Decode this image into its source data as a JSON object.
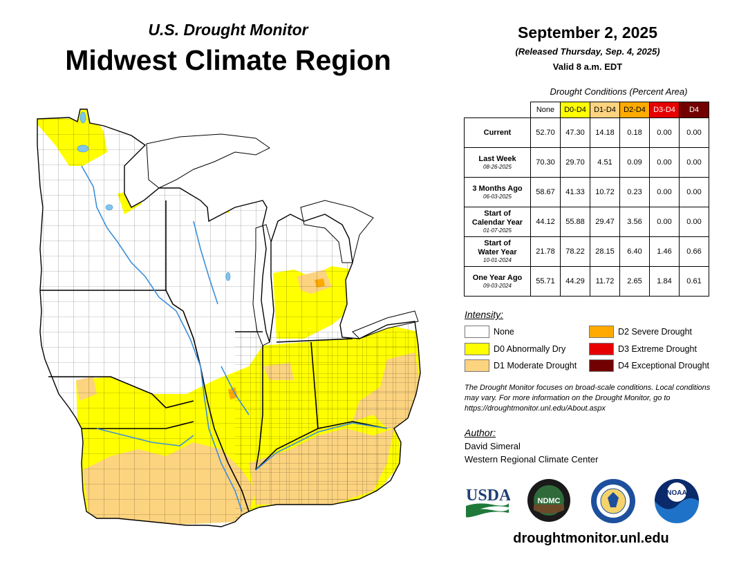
{
  "header": {
    "subtitle": "U.S. Drought Monitor",
    "title": "Midwest Climate Region",
    "date": "September 2, 2025",
    "released": "(Released Thursday, Sep. 4, 2025)",
    "valid": "Valid 8 a.m. EDT"
  },
  "table": {
    "caption": "Drought Conditions (Percent Area)",
    "columns": [
      {
        "label": "None",
        "color": "#ffffff",
        "text_color": "#000000"
      },
      {
        "label": "D0-D4",
        "color": "#ffff00",
        "text_color": "#000000"
      },
      {
        "label": "D1-D4",
        "color": "#fcd37f",
        "text_color": "#000000"
      },
      {
        "label": "D2-D4",
        "color": "#ffaa00",
        "text_color": "#000000"
      },
      {
        "label": "D3-D4",
        "color": "#e60000",
        "text_color": "#ffffff"
      },
      {
        "label": "D4",
        "color": "#730000",
        "text_color": "#ffffff"
      }
    ],
    "rows": [
      {
        "label": "Current",
        "date": "",
        "values": [
          "52.70",
          "47.30",
          "14.18",
          "0.18",
          "0.00",
          "0.00"
        ]
      },
      {
        "label": "Last Week",
        "date": "08-26-2025",
        "values": [
          "70.30",
          "29.70",
          "4.51",
          "0.09",
          "0.00",
          "0.00"
        ]
      },
      {
        "label": "3 Months Ago",
        "date": "06-03-2025",
        "values": [
          "58.67",
          "41.33",
          "10.72",
          "0.23",
          "0.00",
          "0.00"
        ]
      },
      {
        "label": "Start of\nCalendar Year",
        "date": "01-07-2025",
        "values": [
          "44.12",
          "55.88",
          "29.47",
          "3.56",
          "0.00",
          "0.00"
        ]
      },
      {
        "label": "Start of\nWater Year",
        "date": "10-01-2024",
        "values": [
          "21.78",
          "78.22",
          "28.15",
          "6.40",
          "1.46",
          "0.66"
        ]
      },
      {
        "label": "One Year Ago",
        "date": "09-03-2024",
        "values": [
          "55.71",
          "44.29",
          "11.72",
          "2.65",
          "1.84",
          "0.61"
        ]
      }
    ]
  },
  "legend": {
    "title": "Intensity:",
    "items": [
      {
        "label": "None",
        "color": "#ffffff"
      },
      {
        "label": "D0 Abnormally Dry",
        "color": "#ffff00"
      },
      {
        "label": "D1 Moderate Drought",
        "color": "#fcd37f"
      },
      {
        "label": "D2 Severe Drought",
        "color": "#ffaa00"
      },
      {
        "label": "D3 Extreme Drought",
        "color": "#e60000"
      },
      {
        "label": "D4 Exceptional Drought",
        "color": "#730000"
      }
    ]
  },
  "note": "The Drought Monitor focuses on broad-scale conditions. Local conditions may vary. For more information on the Drought Monitor, go to https://droughtmonitor.unl.edu/About.aspx",
  "author": {
    "label": "Author:",
    "name": "David Simeral",
    "org": "Western Regional Climate Center"
  },
  "logos": {
    "usda": "USDA",
    "ndmc": "NDMC",
    "noaa": "NOAA"
  },
  "website": "droughtmonitor.unl.edu",
  "colors": {
    "none": "#ffffff",
    "d0": "#ffff00",
    "d1": "#fcd37f",
    "d2": "#ffaa00",
    "water": "#7fc6ea",
    "border": "#000000"
  }
}
